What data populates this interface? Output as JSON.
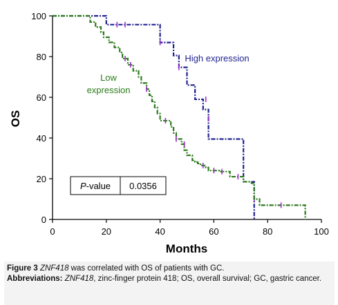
{
  "chart_data": {
    "type": "line",
    "subtype": "kaplan-meier step",
    "xlabel": "Months",
    "ylabel": "OS",
    "xlim": [
      0,
      100
    ],
    "ylim": [
      0,
      100
    ],
    "xticks": [
      0,
      20,
      40,
      60,
      80,
      100
    ],
    "yticks": [
      0,
      20,
      40,
      60,
      80,
      100
    ],
    "grid": false,
    "series": [
      {
        "name": "High expression",
        "label_lines": [
          "High expression"
        ],
        "color": "#1f1f8f",
        "censor_color": "#9b30c8",
        "x": [
          0,
          20,
          40,
          45,
          47,
          50,
          53,
          56,
          58,
          71,
          75
        ],
        "y": [
          100,
          95.7,
          86.9,
          80.5,
          74.7,
          66,
          59,
          54,
          39.5,
          18.5,
          0
        ],
        "censored": [
          [
            24,
            95.7
          ],
          [
            27,
            95.7
          ],
          [
            40,
            86.9
          ],
          [
            47,
            74.7
          ],
          [
            57,
            59
          ],
          [
            58,
            49.5
          ],
          [
            75,
            10
          ]
        ]
      },
      {
        "name": "Low expression",
        "label_lines": [
          "Low",
          "expression"
        ],
        "color": "#2b7a1a",
        "censor_color": "#9b30c8",
        "x": [
          0,
          14,
          16,
          18,
          19,
          21,
          23,
          25,
          26,
          28,
          30,
          32,
          33,
          35,
          36,
          37,
          38,
          39,
          40,
          44,
          45,
          46,
          48,
          49,
          50,
          52,
          53,
          54,
          55,
          57,
          58,
          62,
          66,
          71,
          74,
          75,
          77,
          94
        ],
        "y": [
          100,
          97,
          94.5,
          92,
          89.5,
          87,
          84.5,
          82,
          79,
          76,
          73,
          70,
          67,
          64,
          61,
          58,
          55,
          52,
          48.5,
          45.5,
          42.5,
          39.5,
          37,
          34,
          31.5,
          29,
          28.2,
          27.5,
          26.5,
          25.5,
          24,
          23.5,
          21,
          18.5,
          17.8,
          10,
          7,
          0
        ],
        "censored": [
          [
            27,
            79
          ],
          [
            29,
            76
          ],
          [
            35,
            64
          ],
          [
            42,
            48.5
          ],
          [
            46,
            39.5
          ],
          [
            49,
            37
          ],
          [
            56,
            26.5
          ],
          [
            60,
            24
          ],
          [
            63,
            23.5
          ],
          [
            69,
            21
          ],
          [
            85,
            7
          ]
        ]
      }
    ],
    "annotation_table": {
      "label": "P-value",
      "value": "0.0356"
    }
  },
  "caption": {
    "figure_label": "Figure 3",
    "figure_gene": "ZNF418",
    "figure_text": " was correlated with OS of patients with GC.",
    "abbr_label": "Abbreviations:",
    "abbr_gene": "ZNF418",
    "abbr_text": ", zinc-finger protein 418; OS, overall survival; GC, gastric cancer."
  }
}
